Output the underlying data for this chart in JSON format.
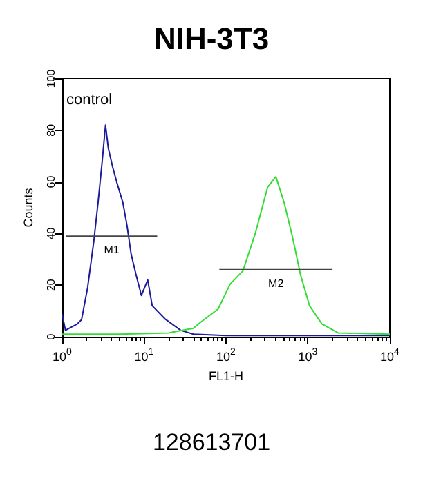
{
  "chart_data": {
    "type": "line",
    "title": "NIH-3T3",
    "xlabel": "FL1-H",
    "ylabel": "Counts",
    "log": "x",
    "xlim": [
      1,
      10000
    ],
    "xticks": [
      {
        "value": 1,
        "label": "10$^{0}$"
      },
      {
        "value": 10,
        "label": "10$^{1}$"
      },
      {
        "value": 100,
        "label": "10$^{2}$"
      },
      {
        "value": 1000,
        "label": "10$^{3}$"
      },
      {
        "value": 10000,
        "label": "10$^{4}$"
      }
    ],
    "ylim": [
      0,
      100
    ],
    "yticks": [
      0,
      20,
      40,
      60,
      80,
      100
    ],
    "grid": false,
    "marker": "none",
    "series": [
      {
        "color": "#1a1a9a",
        "x": [
          1,
          1.1,
          1.54,
          1.73,
          2.05,
          2.44,
          2.75,
          3.09,
          3.39,
          3.67,
          4.13,
          4.64,
          5.52,
          6.21,
          6.97,
          8.0,
          9.3,
          11.1,
          12.6,
          17.9,
          28,
          40,
          100,
          1000,
          10000
        ],
        "values": [
          9,
          2.5,
          5,
          6.6,
          19,
          37,
          52,
          68,
          82,
          73,
          66,
          60,
          52,
          43,
          32,
          24,
          16,
          22,
          12,
          7,
          2.5,
          1,
          0.5,
          0.5,
          0.5
        ]
      },
      {
        "color": "#33dd33",
        "x": [
          1,
          5,
          20,
          40,
          50,
          80,
          113,
          161,
          228,
          323,
          407,
          513,
          646,
          813,
          1047,
          1480,
          2340,
          10000
        ],
        "values": [
          1,
          1,
          1.5,
          3.3,
          5.8,
          10.7,
          20.5,
          25.5,
          40,
          58,
          62,
          52,
          39,
          24,
          12,
          5,
          1.5,
          1
        ]
      },
      {
        "color": "#444444",
        "x": [
          1.12,
          14.5
        ],
        "values": [
          39,
          39
        ]
      },
      {
        "color": "#444444",
        "x": [
          83,
          2000
        ],
        "values": [
          26,
          26
        ]
      }
    ],
    "annotations": [
      "control",
      "M1",
      "M2",
      "128613701"
    ]
  }
}
